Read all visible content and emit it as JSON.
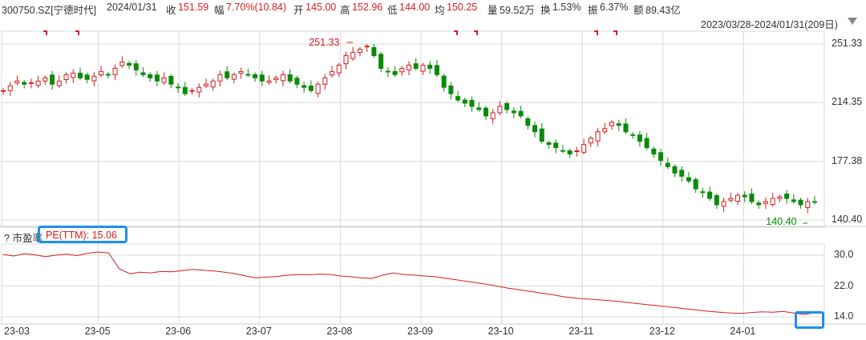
{
  "header": {
    "code": "300750.SZ[宁德时代]",
    "date": "2024/01/31",
    "close_label": "收",
    "close_value": "151.59",
    "change_label": "幅",
    "change_value": "7.70%(10.84)",
    "open_label": "开",
    "open_value": "145.00",
    "high_label": "高",
    "high_value": "152.96",
    "low_label": "低",
    "low_value": "144.00",
    "avg_label": "均",
    "avg_value": "150.25",
    "volume_label": "量",
    "volume_value": "59.52万",
    "turnover_label": "换",
    "turnover_value": "1.53%",
    "amplitude_label": "振",
    "amplitude_value": "6.37%",
    "amount_label": "额",
    "amount_value": "89.43亿"
  },
  "range_text": "2023/03/28-2024/01/31(209日)",
  "pe_panel": {
    "help": "?",
    "name": "市盈率",
    "series_text": "PE(TTM): 15.06"
  },
  "colors": {
    "up": "#d41e1e",
    "down": "#0a8a0a",
    "line": "#d41e1e",
    "highlight": "#1e90e6",
    "grid": "#d9d9d9"
  },
  "chart_data": [
    {
      "type": "candlestick",
      "ylim": [
        140.4,
        251.33
      ],
      "y_ticks": [
        "251.33",
        "214.35",
        "177.38",
        "140.40"
      ],
      "annotations": [
        {
          "text": "251.33",
          "date": "23-08",
          "kind": "max"
        },
        {
          "text": "140.40",
          "date": "24-01",
          "kind": "min"
        }
      ],
      "x_tick_labels": [
        "23-03",
        "23-05",
        "23-06",
        "23-07",
        "23-08",
        "23-09",
        "23-10",
        "23-11",
        "23-12",
        "24-01"
      ],
      "series": [
        {
          "values": [
            222,
            225,
            228,
            226,
            227,
            228,
            230,
            226,
            228,
            232,
            233,
            230,
            229,
            231,
            234,
            232,
            236,
            240,
            238,
            235,
            232,
            230,
            228,
            230,
            226,
            224,
            220,
            222,
            224,
            226,
            228,
            232,
            230,
            232,
            234,
            232,
            230,
            228,
            228,
            230,
            232,
            228,
            226,
            224,
            222,
            226,
            230,
            234,
            238,
            244,
            246,
            248,
            250,
            244,
            236,
            234,
            232,
            236,
            238,
            236,
            238,
            236,
            232,
            224,
            220,
            216,
            214,
            212,
            210,
            206,
            208,
            212,
            210,
            208,
            206,
            200,
            196,
            190,
            188,
            186,
            184,
            182,
            184,
            188,
            192,
            196,
            198,
            202,
            200,
            196,
            194,
            190,
            186,
            182,
            178,
            174,
            170,
            168,
            165,
            160,
            158,
            154,
            150,
            152,
            154,
            156,
            155,
            152,
            150,
            152,
            154,
            155,
            154,
            152,
            150,
            152,
            151.59
          ]
        }
      ]
    },
    {
      "type": "line",
      "ylim": [
        14.0,
        30.0
      ],
      "y_ticks": [
        "30.0",
        "22.0",
        "14.0"
      ],
      "series": [
        {
          "name": "PE(TTM)",
          "values": [
            30.2,
            29.8,
            30.4,
            30.1,
            29.6,
            30.0,
            30.3,
            29.9,
            30.5,
            30.8,
            30.6,
            26.5,
            25.2,
            25.6,
            25.4,
            25.8,
            25.7,
            26.0,
            26.3,
            26.1,
            25.9,
            25.6,
            25.2,
            24.6,
            24.1,
            24.3,
            24.5,
            24.8,
            25.0,
            24.9,
            25.1,
            25.0,
            24.6,
            24.4,
            24.1,
            24.0,
            24.8,
            25.4,
            25.0,
            24.8,
            24.6,
            24.4,
            24.0,
            23.6,
            23.2,
            22.8,
            22.4,
            21.9,
            21.4,
            21.0,
            20.6,
            20.2,
            19.8,
            19.3,
            18.9,
            18.7,
            18.5,
            18.3,
            18.1,
            17.8,
            17.5,
            17.2,
            16.9,
            16.6,
            16.3,
            16.0,
            15.7,
            15.4,
            15.2,
            15.0,
            14.9,
            15.1,
            15.3,
            15.2,
            15.4,
            15.0,
            14.6,
            15.06
          ]
        }
      ]
    }
  ]
}
